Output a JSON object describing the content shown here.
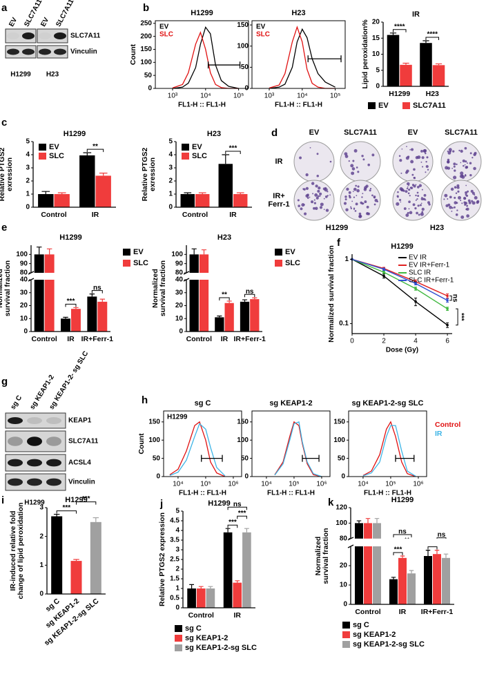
{
  "panel_labels": [
    "a",
    "b",
    "c",
    "d",
    "e",
    "f",
    "g",
    "h",
    "i",
    "j",
    "k"
  ],
  "blot_a": {
    "groups": [
      {
        "lanes": [
          "EV",
          "SLC7A11"
        ],
        "cell_line": "H1299"
      },
      {
        "lanes": [
          "EV",
          "SLC7A11"
        ],
        "cell_line": "H23"
      }
    ],
    "rows": [
      "SLC7A11",
      "Vinculin"
    ]
  },
  "colony_d": {
    "columns": [
      "EV",
      "SLC7A11",
      "EV",
      "SLC7A11"
    ],
    "rows": [
      [
        "IR"
      ],
      [
        "IR+",
        "Ferr-1"
      ]
    ],
    "cell_lines": [
      "H1299",
      "H23"
    ]
  },
  "blot_g": {
    "lanes": [
      "sg C",
      "sg KEAP1-2",
      "sg KEAP1-2- sg SLC"
    ],
    "rows": [
      "KEAP1",
      "SLC7A11",
      "ACSL4",
      "Vinculin"
    ],
    "cell_line": "H1299"
  },
  "chart_data": [
    {
      "type": "flow",
      "title": "H1299",
      "ylabel": "Count",
      "xlabel": "FL1-H :: FL1-H",
      "xlog": true,
      "xlim": [
        300,
        200000
      ],
      "xticks": [
        {
          "value": 1000,
          "label": "10³"
        },
        {
          "value": 10000,
          "label": "10⁴"
        },
        {
          "value": 100000,
          "label": "10⁵"
        }
      ],
      "ylim": [
        0,
        260
      ],
      "yticks": [
        0,
        50,
        100,
        150,
        200,
        250
      ],
      "legend": "top-left",
      "x": [
        1000,
        2000,
        3000,
        5000,
        7000,
        10000,
        14000,
        20000,
        30000,
        50000,
        100000
      ],
      "series": [
        {
          "name": "EV",
          "color": "#000000",
          "values": [
            0,
            5,
            20,
            80,
            170,
            235,
            210,
            90,
            30,
            8,
            0
          ]
        },
        {
          "name": "SLC",
          "color": "#e01010",
          "values": [
            2,
            15,
            60,
            170,
            215,
            150,
            60,
            15,
            3,
            0,
            0
          ]
        }
      ],
      "gate": {
        "x": [
          12000,
          110000
        ],
        "y": 90
      }
    },
    {
      "type": "flow",
      "title": "H23",
      "xlabel": "FL1-H :: FL1-H",
      "xlog": true,
      "xlim": [
        300,
        200000
      ],
      "xticks": [
        {
          "value": 1000,
          "label": "10³"
        },
        {
          "value": 10000,
          "label": "10⁴"
        },
        {
          "value": 100000,
          "label": "10⁵"
        }
      ],
      "ylim": [
        0,
        160
      ],
      "yticks": [
        0,
        50,
        100,
        150
      ],
      "legend": "top-left",
      "x": [
        1000,
        2000,
        3000,
        5000,
        7000,
        10000,
        14000,
        20000,
        30000,
        50000,
        100000
      ],
      "series": [
        {
          "name": "EV",
          "color": "#000000",
          "values": [
            0,
            3,
            10,
            50,
            110,
            140,
            120,
            70,
            35,
            15,
            3
          ]
        },
        {
          "name": "SLC",
          "color": "#e01010",
          "values": [
            1,
            8,
            35,
            110,
            145,
            110,
            45,
            12,
            3,
            0,
            0
          ]
        }
      ],
      "gate": {
        "x": [
          15000,
          150000
        ],
        "y": 70
      }
    },
    {
      "type": "bar",
      "title": "IR",
      "ylabel": "Lipid peroxidation%",
      "categories": [
        "H1299",
        "H23"
      ],
      "ylim": [
        0,
        20
      ],
      "yticks": [
        0,
        5,
        10,
        15,
        20
      ],
      "legend": "below",
      "series": [
        {
          "name": "EV",
          "color": "#000000",
          "values": [
            16,
            13.5
          ],
          "errors": [
            0.6,
            0.7
          ]
        },
        {
          "name": "SLC7A11",
          "color": "#f03c3c",
          "values": [
            6.7,
            6.6
          ],
          "errors": [
            0.5,
            0.4
          ]
        }
      ],
      "brackets": [
        {
          "label": "****",
          "from": [
            0,
            0
          ],
          "to": [
            0,
            1
          ]
        },
        {
          "label": "****",
          "from": [
            1,
            0
          ],
          "to": [
            1,
            1
          ]
        }
      ]
    },
    {
      "type": "bar",
      "title": "H1299",
      "ylabel": [
        "Relative PTGS2",
        "exression"
      ],
      "categories": [
        "Control",
        "IR"
      ],
      "ylim": [
        0,
        5
      ],
      "yticks": [
        0,
        1,
        2,
        3,
        4,
        5
      ],
      "legend": "top-left",
      "series": [
        {
          "name": "EV",
          "color": "#000000",
          "values": [
            1,
            3.95
          ],
          "errors": [
            0.2,
            0.2
          ]
        },
        {
          "name": "SLC",
          "color": "#f03c3c",
          "values": [
            1,
            2.4
          ],
          "errors": [
            0.1,
            0.2
          ]
        }
      ],
      "brackets": [
        {
          "label": "**",
          "from": [
            1,
            0
          ],
          "to": [
            1,
            1
          ]
        }
      ]
    },
    {
      "type": "bar",
      "title": "H23",
      "ylabel": [
        "Relative PTGS2",
        "exression"
      ],
      "categories": [
        "Control",
        "IR"
      ],
      "ylim": [
        0,
        5
      ],
      "yticks": [
        0,
        1,
        2,
        3,
        4,
        5
      ],
      "legend": "top-left",
      "series": [
        {
          "name": "EV",
          "color": "#000000",
          "values": [
            1,
            3.3
          ],
          "errors": [
            0.1,
            0.7
          ]
        },
        {
          "name": "SLC",
          "color": "#f03c3c",
          "values": [
            1,
            1
          ],
          "errors": [
            0.1,
            0.1
          ]
        }
      ],
      "brackets": [
        {
          "label": "***",
          "from": [
            1,
            0
          ],
          "to": [
            1,
            1
          ]
        }
      ]
    },
    {
      "type": "bar",
      "title": "H1299",
      "ylabel": [
        "Normalized",
        "survival fraction"
      ],
      "categories": [
        "Control",
        "IR",
        "IR+Ferr-1"
      ],
      "ylim": [
        0,
        110
      ],
      "ybreak": [
        40,
        80
      ],
      "yticks": [
        0,
        10,
        20,
        30,
        40,
        80,
        90,
        100
      ],
      "legend": "right",
      "series": [
        {
          "name": "EV",
          "color": "#000000",
          "values": [
            100,
            10,
            27
          ],
          "errors": [
            8,
            1,
            2
          ]
        },
        {
          "name": "SLC",
          "color": "#f03c3c",
          "values": [
            100,
            17.5,
            23
          ],
          "errors": [
            6,
            1,
            2
          ]
        }
      ],
      "brackets": [
        {
          "label": "***",
          "from": [
            1,
            0
          ],
          "to": [
            1,
            1
          ]
        },
        {
          "label": "ns",
          "from": [
            2,
            0
          ],
          "to": [
            2,
            1
          ]
        }
      ]
    },
    {
      "type": "bar",
      "title": "H23",
      "ylabel": [
        "Normalized",
        "survival fraction"
      ],
      "categories": [
        "Control",
        "IR",
        "IR+Ferr-1"
      ],
      "ylim": [
        0,
        110
      ],
      "ybreak": [
        40,
        80
      ],
      "yticks": [
        0,
        10,
        20,
        30,
        40,
        80,
        90,
        100
      ],
      "legend": "right",
      "series": [
        {
          "name": "EV",
          "color": "#000000",
          "values": [
            100,
            11,
            23
          ],
          "errors": [
            6,
            1,
            1.5
          ]
        },
        {
          "name": "SLC",
          "color": "#f03c3c",
          "values": [
            100,
            22,
            25
          ],
          "errors": [
            5,
            1.5,
            1
          ]
        }
      ],
      "brackets": [
        {
          "label": "**",
          "from": [
            1,
            0
          ],
          "to": [
            1,
            1
          ]
        },
        {
          "label": "ns",
          "from": [
            2,
            0
          ],
          "to": [
            2,
            1
          ]
        }
      ]
    },
    {
      "type": "line",
      "title": "H1299",
      "ylabel": "Normalized survival fraction",
      "xlabel": "Dose (Gy)",
      "x": [
        0,
        2,
        4,
        6
      ],
      "xlim": [
        0,
        6.3
      ],
      "xticks": [
        0,
        2,
        4,
        6
      ],
      "ylog": true,
      "ylim": [
        0.07,
        1.2
      ],
      "yticks": [
        0.1,
        1
      ],
      "legend": "top-right",
      "series": [
        {
          "name": "EV IR",
          "color": "#000000",
          "values": [
            1,
            0.55,
            0.22,
            0.095
          ],
          "errors": [
            0,
            0.04,
            0.03,
            0.008
          ]
        },
        {
          "name": "EV IR+Ferr-1",
          "color": "#e02020",
          "values": [
            1,
            0.72,
            0.45,
            0.27
          ],
          "errors": [
            0,
            0.03,
            0.03,
            0.02
          ]
        },
        {
          "name": "SLC IR",
          "color": "#40b840",
          "values": [
            1,
            0.63,
            0.35,
            0.17
          ],
          "errors": [
            0,
            0.03,
            0.02,
            0.01
          ]
        },
        {
          "name": "SLC IR+Ferr-1",
          "color": "#3050d0",
          "values": [
            1,
            0.7,
            0.42,
            0.23
          ],
          "errors": [
            0,
            0.03,
            0.02,
            0.015
          ]
        }
      ],
      "brackets": [
        {
          "label": "ns",
          "from": 1,
          "to": 3
        },
        {
          "label": "***",
          "from": 2,
          "to": 0
        }
      ]
    },
    {
      "type": "flow",
      "title": "sg C",
      "annotation": "H1299",
      "ylabel": "Count",
      "xlabel": "FL1-H :: FL1-H",
      "xlog": true,
      "xlim": [
        3000,
        2000000
      ],
      "xticks": [
        {
          "value": 10000,
          "label": "10⁴"
        },
        {
          "value": 100000,
          "label": "10⁵"
        },
        {
          "value": 1000000,
          "label": "10⁶"
        }
      ],
      "ylim": [
        0,
        180
      ],
      "yticks": [
        0,
        50,
        100,
        150
      ],
      "x": [
        5000,
        10000,
        20000,
        40000,
        60000,
        100000,
        150000,
        250000,
        500000
      ],
      "series": [
        {
          "color": "#e01010",
          "values": [
            5,
            20,
            70,
            140,
            150,
            100,
            40,
            10,
            0
          ]
        },
        {
          "color": "#3cb4e6",
          "values": [
            3,
            12,
            45,
            110,
            145,
            130,
            80,
            25,
            2
          ]
        }
      ],
      "gate": {
        "x": [
          70000,
          400000
        ],
        "y": 50
      }
    },
    {
      "type": "flow",
      "title": "sg KEAP1-2",
      "xlabel": "FL1-H :: FL1-H",
      "xlog": true,
      "xlim": [
        3000,
        2000000
      ],
      "xticks": [
        {
          "value": 10000,
          "label": "10⁴"
        },
        {
          "value": 100000,
          "label": "10⁵"
        },
        {
          "value": 1000000,
          "label": "10⁶"
        }
      ],
      "ylim": [
        0,
        180
      ],
      "yticks": [
        0,
        50,
        100,
        150
      ],
      "x": [
        20000,
        40000,
        70000,
        100000,
        150000,
        200000,
        300000,
        500000,
        1000000
      ],
      "series": [
        {
          "color": "#e01010",
          "values": [
            5,
            40,
            110,
            150,
            140,
            90,
            35,
            5,
            0
          ]
        },
        {
          "color": "#3cb4e6",
          "values": [
            4,
            35,
            100,
            145,
            150,
            95,
            40,
            8,
            0
          ]
        }
      ],
      "gate": {
        "x": [
          200000,
          800000
        ],
        "y": 50
      }
    },
    {
      "type": "flow",
      "title": "sg KEAP1-2-sg SLC",
      "xlabel": "FL1-H :: FL1-H",
      "xlog": true,
      "xlim": [
        3000,
        2000000
      ],
      "xticks": [
        {
          "value": 10000,
          "label": "10⁴"
        },
        {
          "value": 100000,
          "label": "10⁵"
        },
        {
          "value": 1000000,
          "label": "10⁶"
        }
      ],
      "ylim": [
        0,
        180
      ],
      "yticks": [
        0,
        50,
        100,
        150
      ],
      "legend": "right",
      "x": [
        10000,
        20000,
        40000,
        70000,
        100000,
        150000,
        250000,
        400000,
        800000
      ],
      "series": [
        {
          "name": "Control",
          "color": "#e01010",
          "values": [
            3,
            15,
            60,
            130,
            150,
            110,
            40,
            8,
            0
          ]
        },
        {
          "name": "IR",
          "color": "#3cb4e6",
          "values": [
            2,
            10,
            40,
            110,
            140,
            140,
            70,
            15,
            1
          ]
        }
      ],
      "gate": {
        "x": [
          150000,
          700000
        ],
        "y": 50
      }
    },
    {
      "type": "bar",
      "title": "H1299",
      "ylabel": [
        "IR-induced relative fold",
        "change of lipid peroxidation"
      ],
      "categories": [
        "sg C",
        "sg KEAP1-2",
        "sg KEAP1-2-sg SLC"
      ],
      "ylim": [
        0,
        3
      ],
      "yticks": [
        0,
        1,
        2,
        3
      ],
      "values": [
        2.7,
        1.15,
        2.5
      ],
      "errors": [
        0.07,
        0.05,
        0.15
      ],
      "colors": [
        "#000000",
        "#f03c3c",
        "#a0a0a0"
      ],
      "brackets": [
        {
          "label": "***",
          "from": 0,
          "to": 1
        },
        {
          "label": "***",
          "from": 1,
          "to": 2
        }
      ]
    },
    {
      "type": "bar",
      "title": "H1299",
      "ylabel": "Relative PTGS2 expression",
      "categories": [
        "Control",
        "IR"
      ],
      "ylim": [
        0,
        5
      ],
      "yticks": [
        0,
        0.5,
        1,
        1.5,
        2,
        2.5,
        3,
        3.5,
        4,
        4.5,
        5
      ],
      "legend": "below",
      "series": [
        {
          "name": "sg C",
          "color": "#000000",
          "values": [
            1,
            3.9
          ],
          "errors": [
            0.2,
            0.2
          ]
        },
        {
          "name": "sg KEAP1-2",
          "color": "#f03c3c",
          "values": [
            1,
            1.3
          ],
          "errors": [
            0.1,
            0.1
          ]
        },
        {
          "name": "sg KEAP1-2-sg SLC",
          "color": "#a0a0a0",
          "values": [
            1,
            3.9
          ],
          "errors": [
            0.1,
            0.2
          ]
        }
      ],
      "brackets": [
        {
          "label": "***",
          "from": [
            1,
            0
          ],
          "to": [
            1,
            1
          ]
        },
        {
          "label": "***",
          "from": [
            1,
            1
          ],
          "to": [
            1,
            2
          ]
        },
        {
          "label": "ns",
          "from": [
            1,
            0
          ],
          "to": [
            1,
            2
          ]
        }
      ]
    },
    {
      "type": "bar",
      "title": "H1299",
      "ylabel": [
        "Normalized",
        "survival fraction"
      ],
      "categories": [
        "Control",
        "IR",
        "IR+Ferr-1"
      ],
      "ylim": [
        0,
        120
      ],
      "ybreak": [
        30,
        80
      ],
      "yticks": [
        0,
        10,
        20,
        80,
        100,
        120
      ],
      "legend": "below",
      "series": [
        {
          "name": "sg C",
          "color": "#000000",
          "values": [
            100,
            13,
            25
          ],
          "errors": [
            3,
            1,
            3
          ]
        },
        {
          "name": "sg KEAP1-2",
          "color": "#f03c3c",
          "values": [
            100,
            24,
            26
          ],
          "errors": [
            6,
            1,
            2
          ]
        },
        {
          "name": "sg KEAP1-2-sg SLC",
          "color": "#a0a0a0",
          "values": [
            100,
            16,
            24
          ],
          "errors": [
            6,
            1.5,
            2
          ]
        }
      ],
      "brackets": [
        {
          "label": "***",
          "from": [
            1,
            0
          ],
          "to": [
            1,
            1
          ]
        },
        {
          "label": "**",
          "from": [
            1,
            1
          ],
          "to": [
            1,
            2
          ]
        },
        {
          "label": "ns",
          "from": [
            1,
            0
          ],
          "to": [
            1,
            2
          ]
        },
        {
          "label": "ns",
          "from": [
            2,
            0
          ],
          "to": [
            2,
            1
          ]
        },
        {
          "label": "ns",
          "from": [
            2,
            1
          ],
          "to": [
            2,
            2
          ]
        }
      ]
    }
  ]
}
